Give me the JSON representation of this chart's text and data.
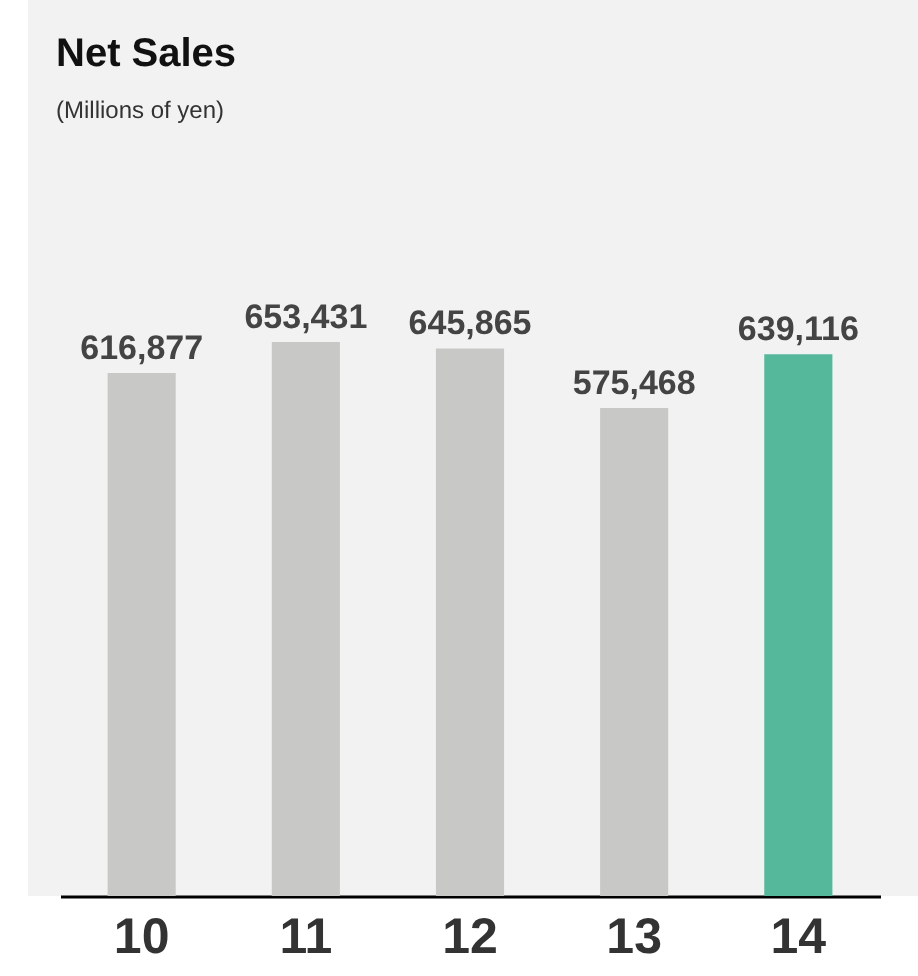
{
  "chart_data": {
    "type": "bar",
    "title": "Net Sales",
    "subtitle": "(Millions of yen)",
    "categories": [
      "10",
      "11",
      "12",
      "13",
      "14"
    ],
    "values": [
      616877,
      653431,
      645865,
      575468,
      639116
    ],
    "colors": [
      "#c8c9c7",
      "#c8c9c7",
      "#c8c9c7",
      "#c8c9c7",
      "#55b89b"
    ],
    "value_labels": [
      "616,877",
      "653,431",
      "645,865",
      "575,468",
      "639,116"
    ],
    "grid": false,
    "tick_labels": "x"
  }
}
